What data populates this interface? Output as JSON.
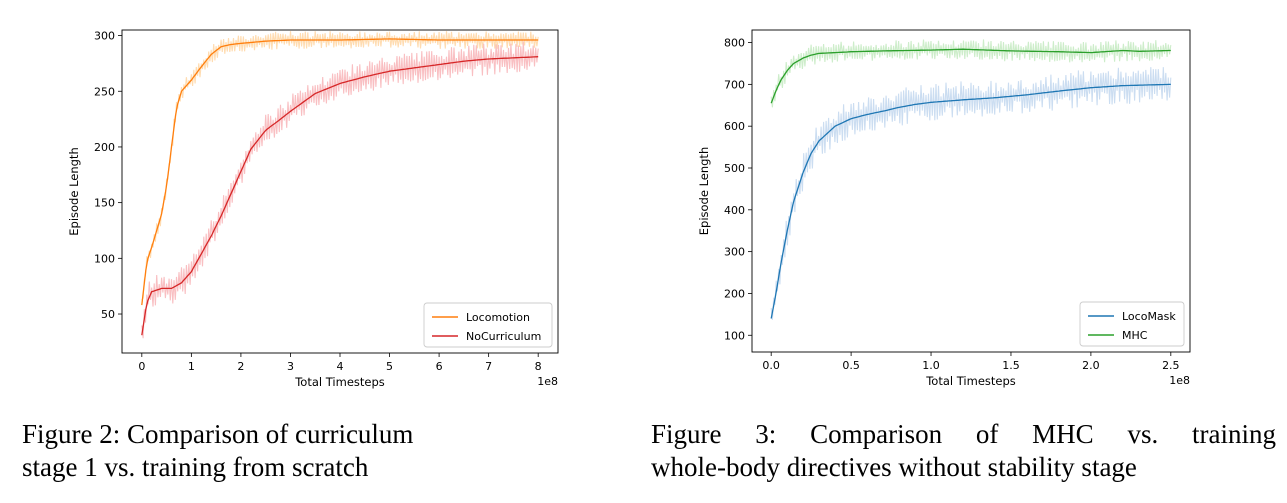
{
  "captions": {
    "left": [
      "Figure 2: Comparison of curriculum",
      "stage 1 vs. training from scratch"
    ],
    "right": [
      "Figure 3:  Comparison of MHC vs.  training",
      "whole-body directives without stability stage"
    ]
  },
  "chart_data": [
    {
      "type": "line",
      "title": "",
      "xlabel": "Total Timesteps",
      "ylabel": "Episode Length",
      "x_offset_label": "1e8",
      "xlim": [
        -0.4,
        8.4
      ],
      "ylim": [
        15,
        305
      ],
      "xticks": [
        0,
        1,
        2,
        3,
        4,
        5,
        6,
        7,
        8
      ],
      "yticks": [
        50,
        100,
        150,
        200,
        250,
        300
      ],
      "grid": false,
      "legend_position": "lower-right",
      "series": [
        {
          "name": "Locomotion",
          "color": "#ff7f0e",
          "band_color": "#ffd8a8",
          "noise": 5,
          "x": [
            0,
            0.1,
            0.2,
            0.3,
            0.4,
            0.5,
            0.6,
            0.7,
            0.8,
            0.9,
            1.0,
            1.2,
            1.4,
            1.6,
            1.8,
            2.0,
            2.5,
            3.0,
            4.0,
            5.0,
            6.0,
            7.0,
            8.0
          ],
          "y": [
            58,
            97,
            110,
            125,
            140,
            165,
            200,
            235,
            250,
            255,
            260,
            272,
            283,
            290,
            292,
            293,
            295,
            296,
            296,
            297,
            296,
            296,
            296
          ]
        },
        {
          "name": "NoCurriculum",
          "color": "#d62728",
          "band_color": "#f8b8bb",
          "noise": 9,
          "x": [
            0,
            0.1,
            0.2,
            0.4,
            0.6,
            0.8,
            1.0,
            1.2,
            1.4,
            1.6,
            1.8,
            2.0,
            2.2,
            2.5,
            2.8,
            3.0,
            3.5,
            4.0,
            4.5,
            5.0,
            5.5,
            6.0,
            6.5,
            7.0,
            7.5,
            8.0
          ],
          "y": [
            31,
            60,
            70,
            73,
            73,
            78,
            88,
            104,
            120,
            138,
            158,
            178,
            198,
            215,
            225,
            232,
            248,
            257,
            263,
            268,
            271,
            274,
            277,
            279,
            280,
            281
          ]
        }
      ]
    },
    {
      "type": "line",
      "title": "",
      "xlabel": "Total Timesteps",
      "ylabel": "Episode Length",
      "x_offset_label": "1e8",
      "xlim": [
        -0.12,
        2.62
      ],
      "ylim": [
        60,
        830
      ],
      "xticks": [
        0.0,
        0.5,
        1.0,
        1.5,
        2.0,
        2.5
      ],
      "yticks": [
        100,
        200,
        300,
        400,
        500,
        600,
        700,
        800
      ],
      "grid": false,
      "legend_position": "lower-right",
      "series": [
        {
          "name": "LocoMask",
          "color": "#1f77b4",
          "band_color": "#c5d9ef",
          "noise": 28,
          "x": [
            0,
            0.03,
            0.06,
            0.1,
            0.14,
            0.2,
            0.25,
            0.3,
            0.4,
            0.5,
            0.6,
            0.7,
            0.8,
            0.9,
            1.0,
            1.2,
            1.4,
            1.6,
            1.8,
            2.0,
            2.2,
            2.5
          ],
          "y": [
            140,
            200,
            270,
            350,
            420,
            490,
            535,
            565,
            600,
            618,
            628,
            636,
            645,
            652,
            657,
            663,
            668,
            675,
            684,
            692,
            697,
            700
          ]
        },
        {
          "name": "MHC",
          "color": "#2ca02c",
          "band_color": "#c8ebc4",
          "noise": 16,
          "x": [
            0,
            0.03,
            0.06,
            0.1,
            0.14,
            0.2,
            0.25,
            0.3,
            0.4,
            0.5,
            0.7,
            1.0,
            1.2,
            1.5,
            1.8,
            2.0,
            2.2,
            2.3,
            2.5
          ],
          "y": [
            655,
            685,
            710,
            733,
            750,
            763,
            770,
            774,
            776,
            778,
            780,
            782,
            784,
            780,
            778,
            776,
            781,
            779,
            781
          ]
        }
      ]
    }
  ]
}
